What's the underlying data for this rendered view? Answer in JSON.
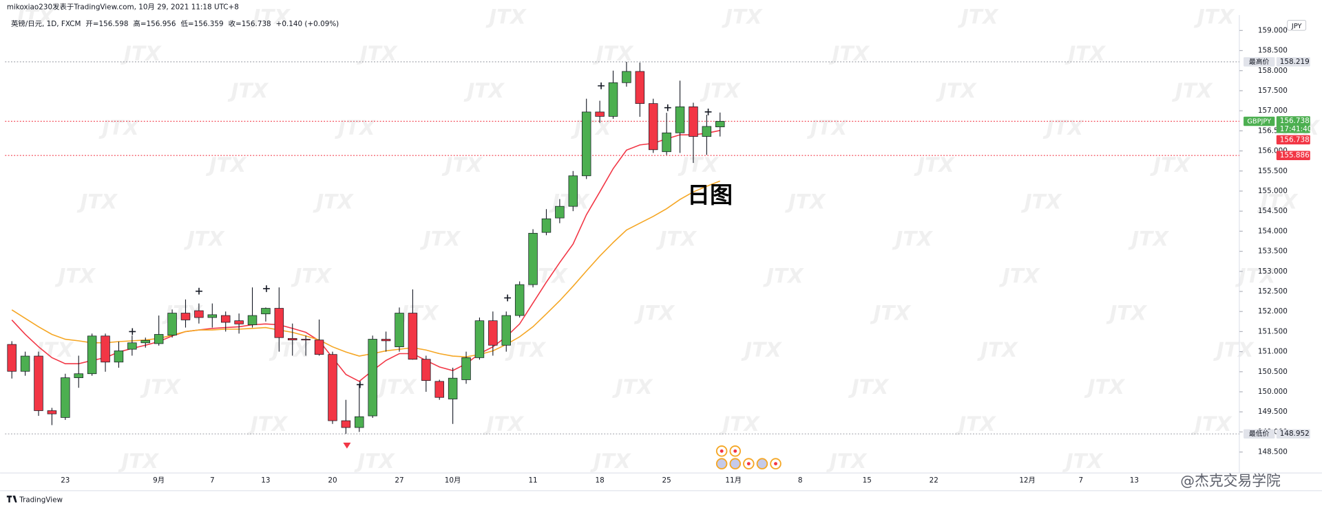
{
  "header": {
    "author_line": "mikoxiao230发表于TradingView.com, 10月 29, 2021 11:18 UTC+8",
    "symbol": "英镑/日元, 1D, FXCM",
    "ohlc_text": [
      "开=156.598",
      "高=156.956",
      "低=156.359",
      "收=156.738",
      "+0.140 (+0.09%)"
    ]
  },
  "chart_data": {
    "type": "candlestick",
    "annotation": "日图",
    "watermark": "JTX",
    "currency": "JPY",
    "categories": [
      null,
      null,
      null,
      null,
      "23",
      null,
      null,
      null,
      null,
      null,
      null,
      "9月",
      null,
      null,
      null,
      "7",
      null,
      null,
      null,
      "13",
      null,
      null,
      null,
      null,
      "20",
      null,
      null,
      null,
      null,
      "27",
      null,
      null,
      null,
      "10月",
      null,
      null,
      null,
      null,
      null,
      "11",
      null,
      null,
      null,
      null,
      "18",
      null,
      null,
      null,
      null,
      "25",
      null,
      null,
      null,
      null,
      "11月",
      null,
      null,
      null,
      null,
      "8",
      null,
      null,
      null,
      null,
      "15",
      null,
      null,
      null,
      null,
      "22",
      null,
      null,
      null,
      null,
      null,
      null,
      "12月",
      null,
      null,
      null,
      "7",
      null,
      null,
      null,
      "13"
    ],
    "open": [
      151.18,
      150.51,
      150.89,
      149.53,
      149.36,
      150.35,
      150.45,
      151.39,
      150.74,
      151.06,
      151.22,
      151.2,
      151.41,
      151.96,
      152.02,
      151.85,
      151.9,
      151.77,
      151.67,
      151.94,
      152.08,
      151.33,
      151.31,
      151.29,
      150.93,
      149.28,
      149.11,
      149.4,
      151.31,
      151.12,
      151.96,
      150.81,
      150.26,
      149.82,
      150.3,
      150.85,
      151.77,
      151.16,
      151.9,
      152.67,
      153.97,
      154.33,
      154.62,
      155.38,
      156.97,
      156.86,
      157.7,
      157.98,
      157.18,
      155.98,
      156.45,
      157.1,
      156.36,
      156.598,
      null,
      null,
      null,
      null,
      null,
      null,
      null,
      null,
      null,
      null,
      null,
      null,
      null,
      null,
      null,
      null,
      null,
      null,
      null,
      null,
      null,
      null,
      null,
      null,
      null,
      null,
      null,
      null,
      null,
      null,
      null
    ],
    "high": [
      151.26,
      151.0,
      151.0,
      149.6,
      150.45,
      150.9,
      151.45,
      151.45,
      151.25,
      151.4,
      151.35,
      151.9,
      152.05,
      152.3,
      152.2,
      152.2,
      152.0,
      151.95,
      152.6,
      152.1,
      152.6,
      151.7,
      151.4,
      151.8,
      151.0,
      149.8,
      150.2,
      151.4,
      151.5,
      152.1,
      152.55,
      150.9,
      150.3,
      150.6,
      151.0,
      151.85,
      152.0,
      152.0,
      152.75,
      154.05,
      154.55,
      154.8,
      155.5,
      157.3,
      157.25,
      158.0,
      158.219,
      158.2,
      157.3,
      156.95,
      157.75,
      157.2,
      156.9,
      156.956,
      null,
      null,
      null,
      null,
      null,
      null,
      null,
      null,
      null,
      null,
      null,
      null,
      null,
      null,
      null,
      null,
      null,
      null,
      null,
      null,
      null,
      null,
      null,
      null,
      null,
      null,
      null,
      null,
      null,
      null,
      null
    ],
    "low": [
      150.33,
      150.4,
      149.4,
      149.17,
      149.3,
      150.1,
      150.4,
      150.5,
      150.6,
      150.9,
      151.1,
      151.15,
      151.35,
      151.6,
      151.7,
      151.6,
      151.5,
      151.45,
      151.6,
      151.75,
      151.0,
      150.9,
      150.9,
      150.9,
      149.2,
      148.952,
      149.0,
      149.35,
      151.0,
      151.0,
      150.8,
      150.0,
      149.8,
      149.2,
      150.2,
      150.8,
      150.9,
      151.0,
      151.85,
      152.6,
      153.9,
      154.2,
      154.5,
      155.3,
      156.7,
      156.8,
      157.6,
      156.85,
      155.95,
      155.9,
      155.95,
      155.7,
      155.9,
      156.359,
      null,
      null,
      null,
      null,
      null,
      null,
      null,
      null,
      null,
      null,
      null,
      null,
      null,
      null,
      null,
      null,
      null,
      null,
      null,
      null,
      null,
      null,
      null,
      null,
      null,
      null,
      null,
      null,
      null,
      null,
      null
    ],
    "close": [
      150.51,
      150.89,
      149.53,
      149.45,
      150.35,
      150.45,
      151.39,
      150.74,
      151.02,
      151.22,
      151.28,
      151.43,
      151.96,
      151.79,
      151.85,
      151.92,
      151.73,
      151.69,
      151.9,
      152.08,
      151.35,
      151.29,
      151.29,
      150.93,
      149.28,
      149.11,
      149.38,
      151.31,
      151.27,
      151.96,
      150.81,
      150.28,
      149.86,
      150.34,
      150.85,
      151.77,
      151.16,
      151.9,
      152.67,
      153.95,
      154.31,
      154.62,
      155.38,
      156.97,
      156.86,
      157.7,
      157.98,
      157.18,
      156.03,
      156.45,
      157.1,
      156.36,
      156.61,
      156.738,
      null,
      null,
      null,
      null,
      null,
      null,
      null,
      null,
      null,
      null,
      null,
      null,
      null,
      null,
      null,
      null,
      null,
      null,
      null,
      null,
      null,
      null,
      null,
      null,
      null,
      null,
      null,
      null,
      null,
      null,
      null
    ],
    "up_color": "#4caf50",
    "down_color": "#f23645",
    "series": [
      {
        "color": "#f23645",
        "values": [
          151.79,
          151.43,
          151.12,
          150.85,
          150.7,
          150.7,
          150.78,
          150.85,
          150.99,
          151.08,
          151.16,
          151.25,
          151.39,
          151.5,
          151.54,
          151.58,
          151.6,
          151.62,
          151.67,
          151.69,
          151.67,
          151.58,
          151.48,
          151.27,
          150.85,
          150.43,
          150.26,
          150.53,
          150.78,
          150.95,
          150.95,
          150.78,
          150.62,
          150.53,
          150.7,
          150.95,
          151.12,
          151.37,
          151.69,
          152.21,
          152.73,
          153.22,
          153.68,
          154.41,
          154.98,
          155.56,
          156.02,
          156.15,
          156.19,
          156.3,
          156.4,
          156.4,
          156.44,
          156.51,
          null,
          null,
          null,
          null,
          null,
          null,
          null,
          null,
          null,
          null,
          null,
          null,
          null,
          null,
          null,
          null,
          null,
          null,
          null,
          null,
          null,
          null,
          null,
          null,
          null,
          null,
          null,
          null,
          null,
          null,
          null
        ]
      },
      {
        "color": "#f5a623",
        "values": [
          152.04,
          151.83,
          151.62,
          151.43,
          151.31,
          151.27,
          151.22,
          151.22,
          151.25,
          151.27,
          151.29,
          151.33,
          151.41,
          151.5,
          151.54,
          151.54,
          151.56,
          151.56,
          151.58,
          151.6,
          151.54,
          151.48,
          151.39,
          151.29,
          151.12,
          150.99,
          150.89,
          150.95,
          151.02,
          151.06,
          151.1,
          151.04,
          150.95,
          150.89,
          150.87,
          150.93,
          151.02,
          151.18,
          151.37,
          151.62,
          151.94,
          152.27,
          152.63,
          153.01,
          153.38,
          153.72,
          154.03,
          154.2,
          154.37,
          154.56,
          154.79,
          154.98,
          155.12,
          155.25,
          null,
          null,
          null,
          null,
          null,
          null,
          null,
          null,
          null,
          null,
          null,
          null,
          null,
          null,
          null,
          null,
          null,
          null,
          null,
          null,
          null,
          null,
          null,
          null,
          null,
          null,
          null,
          null,
          null,
          null,
          null
        ]
      }
    ],
    "ylim": [
      148.02,
      159.34
    ],
    "yticks": [
      {
        "value": 148.5,
        "label": "148.500"
      },
      {
        "value": 149,
        "label": "149.000"
      },
      {
        "value": 149.5,
        "label": "149.500"
      },
      {
        "value": 150,
        "label": "150.000"
      },
      {
        "value": 150.5,
        "label": "150.500"
      },
      {
        "value": 151,
        "label": "151.000"
      },
      {
        "value": 151.5,
        "label": "151.500"
      },
      {
        "value": 152,
        "label": "152.000"
      },
      {
        "value": 152.5,
        "label": "152.500"
      },
      {
        "value": 153,
        "label": "153.000"
      },
      {
        "value": 153.5,
        "label": "153.500"
      },
      {
        "value": 154,
        "label": "154.000"
      },
      {
        "value": 154.5,
        "label": "154.500"
      },
      {
        "value": 155,
        "label": "155.000"
      },
      {
        "value": 155.5,
        "label": "155.500"
      },
      {
        "value": 156,
        "label": "156.000"
      },
      {
        "value": 156.5,
        "label": "156.500"
      },
      {
        "value": 157,
        "label": "157.000"
      },
      {
        "value": 157.5,
        "label": "157.500"
      },
      {
        "value": 158,
        "label": "158.000"
      },
      {
        "value": 158.5,
        "label": "158.500"
      },
      {
        "value": 159,
        "label": "159.000"
      }
    ],
    "price_lines": [
      {
        "name": "最高价",
        "value": 158.219,
        "color": "#9598a1"
      },
      {
        "name": "最低价",
        "value": 148.952,
        "color": "#9598a1"
      },
      {
        "name": "GBPJPY",
        "value": 156.738,
        "time": "17:41:40",
        "color": "#f23645",
        "label_color": "#4caf50"
      },
      {
        "value": 155.886,
        "color": "#f23645",
        "label_color": "#f23645"
      }
    ],
    "extra_labels": [
      {
        "value": 156.738,
        "color": "#f23645"
      }
    ]
  },
  "footer": {
    "brand": "TradingView",
    "credit": "@杰克交易学院"
  }
}
